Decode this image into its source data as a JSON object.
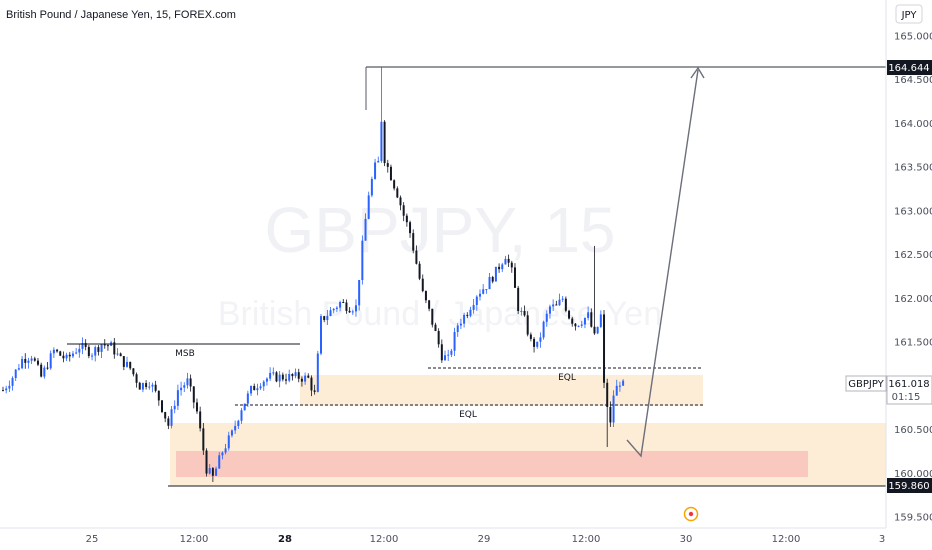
{
  "header": {
    "title": "British Pound / Japanese Yen, 15, FOREX.com",
    "currency_button": "JPY"
  },
  "watermark": {
    "symbol_line": "GBPJPY, 15",
    "name_line": "British Pound / Japanese Yen"
  },
  "colors": {
    "up": "#2962ff",
    "down": "#131722",
    "zone_light": "#fde9cf",
    "zone_red": "#f9c9c0",
    "line": "#555a66"
  },
  "chart_data": {
    "type": "candlestick",
    "title": "British Pound / Japanese Yen, 15, FOREX.com",
    "x_tick_labels": [
      "25",
      "12:00",
      "28",
      "12:00",
      "29",
      "12:00",
      "30",
      "12:00",
      "3"
    ],
    "y_ticks": [
      "165.000",
      "164.500",
      "164.000",
      "163.500",
      "163.000",
      "162.500",
      "162.000",
      "161.500",
      "161.000",
      "160.500",
      "160.000",
      "159.500"
    ],
    "ylim": [
      159.35,
      165.25
    ],
    "close_path": [
      [
        0,
        160.95
      ],
      [
        3,
        161.1
      ],
      [
        6,
        161.3
      ],
      [
        9,
        161.35
      ],
      [
        12,
        161.1
      ],
      [
        16,
        161.4
      ],
      [
        20,
        161.3
      ],
      [
        24,
        161.45
      ],
      [
        28,
        161.38
      ],
      [
        31,
        161.48
      ],
      [
        34,
        161.45
      ],
      [
        37,
        161.3
      ],
      [
        40,
        161.2
      ],
      [
        43,
        161.0
      ],
      [
        46,
        161.05
      ],
      [
        49,
        160.85
      ],
      [
        52,
        160.55
      ],
      [
        55,
        160.95
      ],
      [
        58,
        161.05
      ],
      [
        61,
        160.7
      ],
      [
        64,
        160.05
      ],
      [
        66,
        159.95
      ],
      [
        69,
        160.25
      ],
      [
        72,
        160.45
      ],
      [
        75,
        160.75
      ],
      [
        78,
        160.95
      ],
      [
        81,
        161.05
      ],
      [
        84,
        161.1
      ],
      [
        87,
        161.1
      ],
      [
        90,
        161.1
      ],
      [
        93,
        161.1
      ],
      [
        96,
        161.08
      ],
      [
        98,
        160.9
      ],
      [
        100,
        161.75
      ],
      [
        103,
        161.85
      ],
      [
        106,
        161.95
      ],
      [
        109,
        161.9
      ],
      [
        111,
        161.9
      ],
      [
        113,
        162.6
      ],
      [
        115,
        163.2
      ],
      [
        117,
        163.5
      ],
      [
        118,
        163.55
      ],
      [
        119,
        164.05
      ],
      [
        120,
        163.6
      ],
      [
        122,
        163.4
      ],
      [
        124,
        163.2
      ],
      [
        126,
        162.95
      ],
      [
        128,
        162.75
      ],
      [
        130,
        162.4
      ],
      [
        132,
        162.05
      ],
      [
        134,
        161.85
      ],
      [
        136,
        161.6
      ],
      [
        138,
        161.35
      ],
      [
        140,
        161.3
      ],
      [
        143,
        161.7
      ],
      [
        146,
        161.85
      ],
      [
        149,
        162.05
      ],
      [
        152,
        162.15
      ],
      [
        155,
        162.3
      ],
      [
        158,
        162.5
      ],
      [
        160,
        162.3
      ],
      [
        162,
        161.9
      ],
      [
        164,
        161.75
      ],
      [
        166,
        161.5
      ],
      [
        168,
        161.45
      ],
      [
        170,
        161.7
      ],
      [
        172,
        161.9
      ],
      [
        174,
        161.9
      ],
      [
        176,
        162.0
      ],
      [
        178,
        161.8
      ],
      [
        180,
        161.7
      ],
      [
        182,
        161.75
      ],
      [
        184,
        161.8
      ],
      [
        186,
        161.55
      ],
      [
        188,
        161.8
      ],
      [
        189,
        161.0
      ],
      [
        191,
        160.55
      ],
      [
        192,
        160.9
      ],
      [
        194,
        161.05
      ],
      [
        195,
        161.0
      ]
    ],
    "levels": {
      "msb_label": "MSB",
      "eql_label": "EQL"
    },
    "price_labels": {
      "target": "164.644",
      "low": "159.860",
      "current": "161.018",
      "countdown": "01:15",
      "symbol": "GBPJPY"
    }
  }
}
